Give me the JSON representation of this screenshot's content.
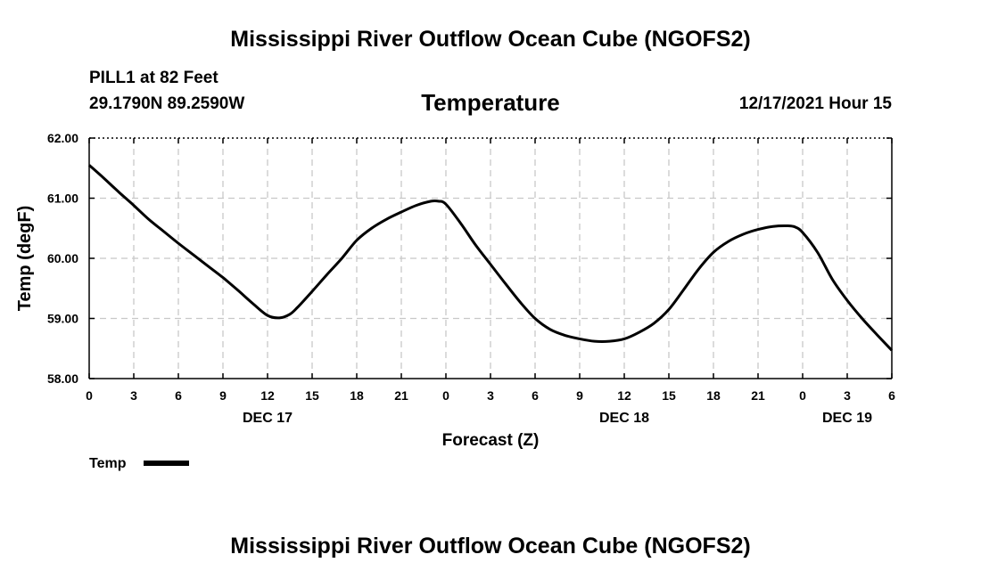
{
  "header": {
    "title": "Mississippi River Outflow Ocean Cube (NGOFS2)",
    "station": "PILL1 at 82 Feet",
    "coords": "29.1790N  89.2590W",
    "subtitle": "Temperature",
    "datetime": "12/17/2021 Hour 15"
  },
  "footer": {
    "title": "Mississippi River Outflow Ocean Cube (NGOFS2)"
  },
  "colors": {
    "line": "#000000",
    "grid": "#c8c8c8"
  },
  "chart_data": {
    "type": "line",
    "title": "Temperature",
    "xlabel": "Forecast (Z)",
    "ylabel": "Temp (degF)",
    "xlim": [
      0,
      54
    ],
    "ylim": [
      58.0,
      62.0
    ],
    "grid": true,
    "x_ticks": [
      0,
      3,
      6,
      9,
      12,
      15,
      18,
      21,
      24,
      27,
      30,
      33,
      36,
      39,
      42,
      45,
      48,
      51,
      54
    ],
    "x_tick_labels": [
      "0",
      "3",
      "6",
      "9",
      "12",
      "15",
      "18",
      "21",
      "0",
      "3",
      "6",
      "9",
      "12",
      "15",
      "18",
      "21",
      "0",
      "3",
      "6"
    ],
    "y_ticks": [
      58.0,
      59.0,
      60.0,
      61.0,
      62.0
    ],
    "y_tick_labels": [
      "58.00",
      "59.00",
      "60.00",
      "61.00",
      "62.00"
    ],
    "date_labels": [
      {
        "label": "DEC 17",
        "x": 12
      },
      {
        "label": "DEC 18",
        "x": 36
      },
      {
        "label": "DEC 19",
        "x": 51
      }
    ],
    "legend": {
      "label": "Temp",
      "position": "bottom-left"
    },
    "series": [
      {
        "name": "Temp",
        "x": [
          0,
          1,
          2,
          3,
          4,
          5,
          6,
          7,
          8,
          9,
          10,
          11,
          12,
          12.8,
          13.5,
          14,
          15,
          16,
          17,
          18,
          19,
          20,
          21,
          22,
          23,
          23.5,
          24,
          25,
          26,
          27,
          28,
          29,
          30,
          31,
          32,
          33,
          34,
          35,
          36,
          37,
          38,
          39,
          40,
          41,
          42,
          43,
          44,
          45,
          46,
          47,
          47.5,
          48,
          49,
          50,
          51,
          52,
          53,
          54
        ],
        "values": [
          61.55,
          61.33,
          61.1,
          60.88,
          60.65,
          60.45,
          60.25,
          60.06,
          59.87,
          59.68,
          59.47,
          59.25,
          59.05,
          59.01,
          59.07,
          59.18,
          59.45,
          59.73,
          60.0,
          60.3,
          60.5,
          60.65,
          60.77,
          60.88,
          60.95,
          60.95,
          60.9,
          60.58,
          60.22,
          59.9,
          59.58,
          59.27,
          59.0,
          58.82,
          58.72,
          58.66,
          58.62,
          58.62,
          58.66,
          58.77,
          58.92,
          59.15,
          59.48,
          59.82,
          60.1,
          60.28,
          60.4,
          60.48,
          60.53,
          60.54,
          60.52,
          60.43,
          60.1,
          59.65,
          59.3,
          59.0,
          58.73,
          58.47
        ]
      }
    ]
  }
}
